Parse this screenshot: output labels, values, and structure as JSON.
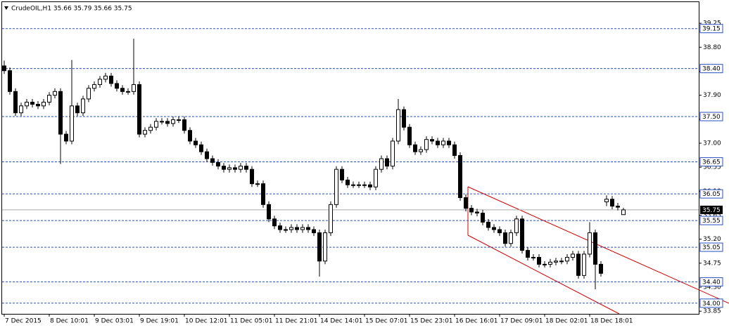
{
  "chart_data": {
    "type": "candlestick",
    "title": "CrudeOIL,H1  35.66 35.79 35.66 35.75",
    "categories": [
      "7 Dec 2015",
      null,
      null,
      null,
      null,
      null,
      null,
      null,
      "8 Dec 10:01",
      null,
      null,
      null,
      null,
      null,
      null,
      null,
      "9 Dec 03:01",
      null,
      null,
      null,
      null,
      null,
      null,
      null,
      "9 Dec 19:01",
      null,
      null,
      null,
      null,
      null,
      null,
      null,
      "10 Dec 12:01",
      null,
      null,
      null,
      null,
      null,
      null,
      null,
      "11 Dec 05:01",
      null,
      null,
      null,
      null,
      null,
      null,
      null,
      "11 Dec 21:01",
      null,
      null,
      null,
      null,
      null,
      null,
      null,
      "14 Dec 14:01",
      null,
      null,
      null,
      null,
      null,
      null,
      null,
      "15 Dec 07:01",
      null,
      null,
      null,
      null,
      null,
      null,
      null,
      "15 Dec 23:01",
      null,
      null,
      null,
      null,
      null,
      null,
      null,
      "16 Dec 16:01",
      null,
      null,
      null,
      null,
      null,
      null,
      null,
      "17 Dec 09:01",
      null,
      null,
      null,
      null,
      null,
      null,
      null,
      "18 Dec 02:01",
      null,
      null,
      null,
      null,
      null,
      null,
      null,
      "18 Dec 18:01",
      null,
      null,
      null,
      null,
      null,
      null
    ],
    "open": [
      38.45,
      38.36,
      37.97,
      37.57,
      37.7,
      37.77,
      37.73,
      37.7,
      37.77,
      37.9,
      37.97,
      37.17,
      37.04,
      37.7,
      37.57,
      37.83,
      38.03,
      38.1,
      38.2,
      38.26,
      38.12,
      38.03,
      37.97,
      37.97,
      38.1,
      37.17,
      37.24,
      37.3,
      37.41,
      37.41,
      37.37,
      37.44,
      37.44,
      37.24,
      37.04,
      36.97,
      36.84,
      36.71,
      36.64,
      36.57,
      36.51,
      36.54,
      36.51,
      36.57,
      36.51,
      36.24,
      36.24,
      35.85,
      35.58,
      35.45,
      35.38,
      35.38,
      35.42,
      35.38,
      35.42,
      35.38,
      35.32,
      34.79,
      35.32,
      35.85,
      36.51,
      36.31,
      36.22,
      36.22,
      36.22,
      36.22,
      36.18,
      36.51,
      36.71,
      36.57,
      37.04,
      37.63,
      37.3,
      36.97,
      36.84,
      36.88,
      37.07,
      37.04,
      36.97,
      37.04,
      36.97,
      36.77,
      35.98,
      35.78,
      35.71,
      35.69,
      35.52,
      35.42,
      35.38,
      35.32,
      35.12,
      35.32,
      35.58,
      34.99,
      34.86,
      34.86,
      34.73,
      34.73,
      34.77,
      34.79,
      34.79,
      34.86,
      34.92,
      34.52,
      34.92,
      35.32,
      34.73,
      35.9,
      35.95,
      35.82,
      35.66
    ],
    "high": [
      38.55,
      38.42,
      38.03,
      37.76,
      37.83,
      37.83,
      37.79,
      37.83,
      37.96,
      38.03,
      38.03,
      37.23,
      38.56,
      37.76,
      37.89,
      38.09,
      38.16,
      38.26,
      38.32,
      38.32,
      38.18,
      38.09,
      38.03,
      38.96,
      38.16,
      37.3,
      37.36,
      37.47,
      37.47,
      37.47,
      37.5,
      37.5,
      37.5,
      37.3,
      37.1,
      37.03,
      36.9,
      36.77,
      36.7,
      36.63,
      36.6,
      36.6,
      36.63,
      36.63,
      36.57,
      36.3,
      36.3,
      35.91,
      35.64,
      35.51,
      35.44,
      35.48,
      35.48,
      35.48,
      35.48,
      35.44,
      35.38,
      35.38,
      35.91,
      36.57,
      36.57,
      36.37,
      36.28,
      36.28,
      36.28,
      36.28,
      36.57,
      36.77,
      36.77,
      37.1,
      37.83,
      37.69,
      37.36,
      37.03,
      36.94,
      37.13,
      37.13,
      37.1,
      37.1,
      37.1,
      37.03,
      36.83,
      36.04,
      35.84,
      35.77,
      35.75,
      35.58,
      35.48,
      35.44,
      35.38,
      35.38,
      35.64,
      35.64,
      35.05,
      34.92,
      34.92,
      34.79,
      34.83,
      34.85,
      34.85,
      34.92,
      34.98,
      34.98,
      34.98,
      35.52,
      35.38,
      34.79,
      36.02,
      36.01,
      35.88,
      35.79
    ],
    "low": [
      38.3,
      37.91,
      37.51,
      37.51,
      37.64,
      37.67,
      37.64,
      37.64,
      37.71,
      37.84,
      36.61,
      36.98,
      36.98,
      37.51,
      37.51,
      37.77,
      37.97,
      38.04,
      38.14,
      38.06,
      37.97,
      37.91,
      37.91,
      37.91,
      37.11,
      37.11,
      37.18,
      37.24,
      37.35,
      37.31,
      37.31,
      37.38,
      37.18,
      36.98,
      36.91,
      36.78,
      36.65,
      36.58,
      36.51,
      36.45,
      36.45,
      36.45,
      36.45,
      36.45,
      36.18,
      36.18,
      35.79,
      35.52,
      35.39,
      35.32,
      35.32,
      35.32,
      35.32,
      35.32,
      35.32,
      35.26,
      34.5,
      34.73,
      35.26,
      35.79,
      36.25,
      36.16,
      36.16,
      36.16,
      36.16,
      36.12,
      36.12,
      36.45,
      36.51,
      36.51,
      36.98,
      37.24,
      36.91,
      36.78,
      36.78,
      36.82,
      36.98,
      36.91,
      36.91,
      36.91,
      36.71,
      35.92,
      35.72,
      35.65,
      35.63,
      35.46,
      35.36,
      35.32,
      35.26,
      35.06,
      35.06,
      35.26,
      34.93,
      34.8,
      34.8,
      34.67,
      34.67,
      34.67,
      34.71,
      34.73,
      34.73,
      34.8,
      34.46,
      34.46,
      34.86,
      34.26,
      34.5,
      35.82,
      35.76,
      35.74,
      35.66
    ],
    "close": [
      38.36,
      37.97,
      37.57,
      37.7,
      37.77,
      37.73,
      37.7,
      37.77,
      37.9,
      37.97,
      37.17,
      37.04,
      37.7,
      37.57,
      37.83,
      38.03,
      38.1,
      38.2,
      38.26,
      38.12,
      38.03,
      37.97,
      37.97,
      38.1,
      37.17,
      37.24,
      37.3,
      37.41,
      37.41,
      37.37,
      37.44,
      37.44,
      37.24,
      37.04,
      36.97,
      36.84,
      36.71,
      36.64,
      36.57,
      36.51,
      36.54,
      36.51,
      36.57,
      36.51,
      36.24,
      36.24,
      35.85,
      35.58,
      35.45,
      35.38,
      35.38,
      35.42,
      35.38,
      35.42,
      35.38,
      35.32,
      34.79,
      35.32,
      35.85,
      36.51,
      36.31,
      36.22,
      36.22,
      36.22,
      36.22,
      36.18,
      36.51,
      36.71,
      36.57,
      37.04,
      37.63,
      37.3,
      36.97,
      36.84,
      36.88,
      37.07,
      37.04,
      36.97,
      37.04,
      36.97,
      36.77,
      35.98,
      35.78,
      35.71,
      35.69,
      35.52,
      35.42,
      35.38,
      35.32,
      35.12,
      35.32,
      35.58,
      34.99,
      34.86,
      34.86,
      34.73,
      34.73,
      34.77,
      34.79,
      34.79,
      34.86,
      34.92,
      34.52,
      34.92,
      35.32,
      34.73,
      34.56,
      35.95,
      35.82,
      35.8,
      35.75
    ],
    "ylim": [
      33.8,
      39.62
    ],
    "yticks": [
      33.85,
      {
        "value": 34.3,
        "label": "34.30"
      },
      34.75,
      {
        "value": 35.2,
        "label": "35.20"
      },
      35.65,
      {
        "value": 36.1,
        "label": "36.10"
      },
      36.55,
      {
        "value": 37,
        "label": "37.00"
      },
      37.45,
      {
        "value": 37.9,
        "label": "37.90"
      },
      38.35,
      {
        "value": 38.8,
        "label": "38.80"
      },
      39.25
    ],
    "levels": [
      39.15,
      {
        "value": 38.4,
        "label": "38.40"
      },
      {
        "value": 37.5,
        "label": "37.50"
      },
      36.65,
      36.05,
      35.55,
      35.05,
      {
        "value": 34.4,
        "label": "34.40"
      },
      {
        "value": 34,
        "label": "34.00"
      }
    ],
    "current_price": 35.75,
    "level_color": "#2a4fc0",
    "candle_color": "#000000"
  }
}
